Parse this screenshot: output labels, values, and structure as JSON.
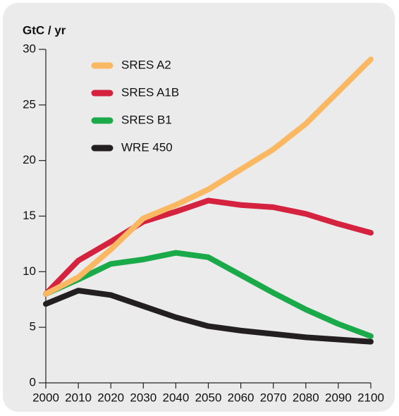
{
  "chart_data": {
    "type": "line",
    "y_label": "GtC / yr",
    "x": [
      2000,
      2010,
      2020,
      2030,
      2040,
      2050,
      2060,
      2070,
      2080,
      2090,
      2100
    ],
    "series": [
      {
        "name": "SRES A2",
        "color": "#fbb862",
        "values": [
          8.0,
          9.5,
          12.0,
          14.8,
          16.0,
          17.4,
          19.2,
          21.0,
          23.3,
          26.2,
          29.1
        ]
      },
      {
        "name": "SRES A1B",
        "color": "#d4223f",
        "values": [
          8.0,
          11.0,
          12.7,
          14.5,
          15.4,
          16.4,
          16.0,
          15.8,
          15.2,
          14.3,
          13.5
        ]
      },
      {
        "name": "SRES B1",
        "color": "#1aaa4a",
        "values": [
          8.0,
          9.3,
          10.7,
          11.1,
          11.7,
          11.3,
          9.7,
          8.1,
          6.6,
          5.3,
          4.2
        ]
      },
      {
        "name": "WRE 450",
        "color": "#231f20",
        "values": [
          7.1,
          8.3,
          7.9,
          6.9,
          5.9,
          5.1,
          4.7,
          4.4,
          4.1,
          3.9,
          3.7
        ]
      }
    ],
    "xlim": [
      2000,
      2100
    ],
    "xticks": [
      2000,
      2010,
      2020,
      2030,
      2040,
      2050,
      2060,
      2070,
      2080,
      2090,
      2100
    ],
    "ylim": [
      0,
      30
    ],
    "yticks": [
      0,
      5,
      10,
      15,
      20,
      25,
      30
    ],
    "legend": "upper left"
  }
}
